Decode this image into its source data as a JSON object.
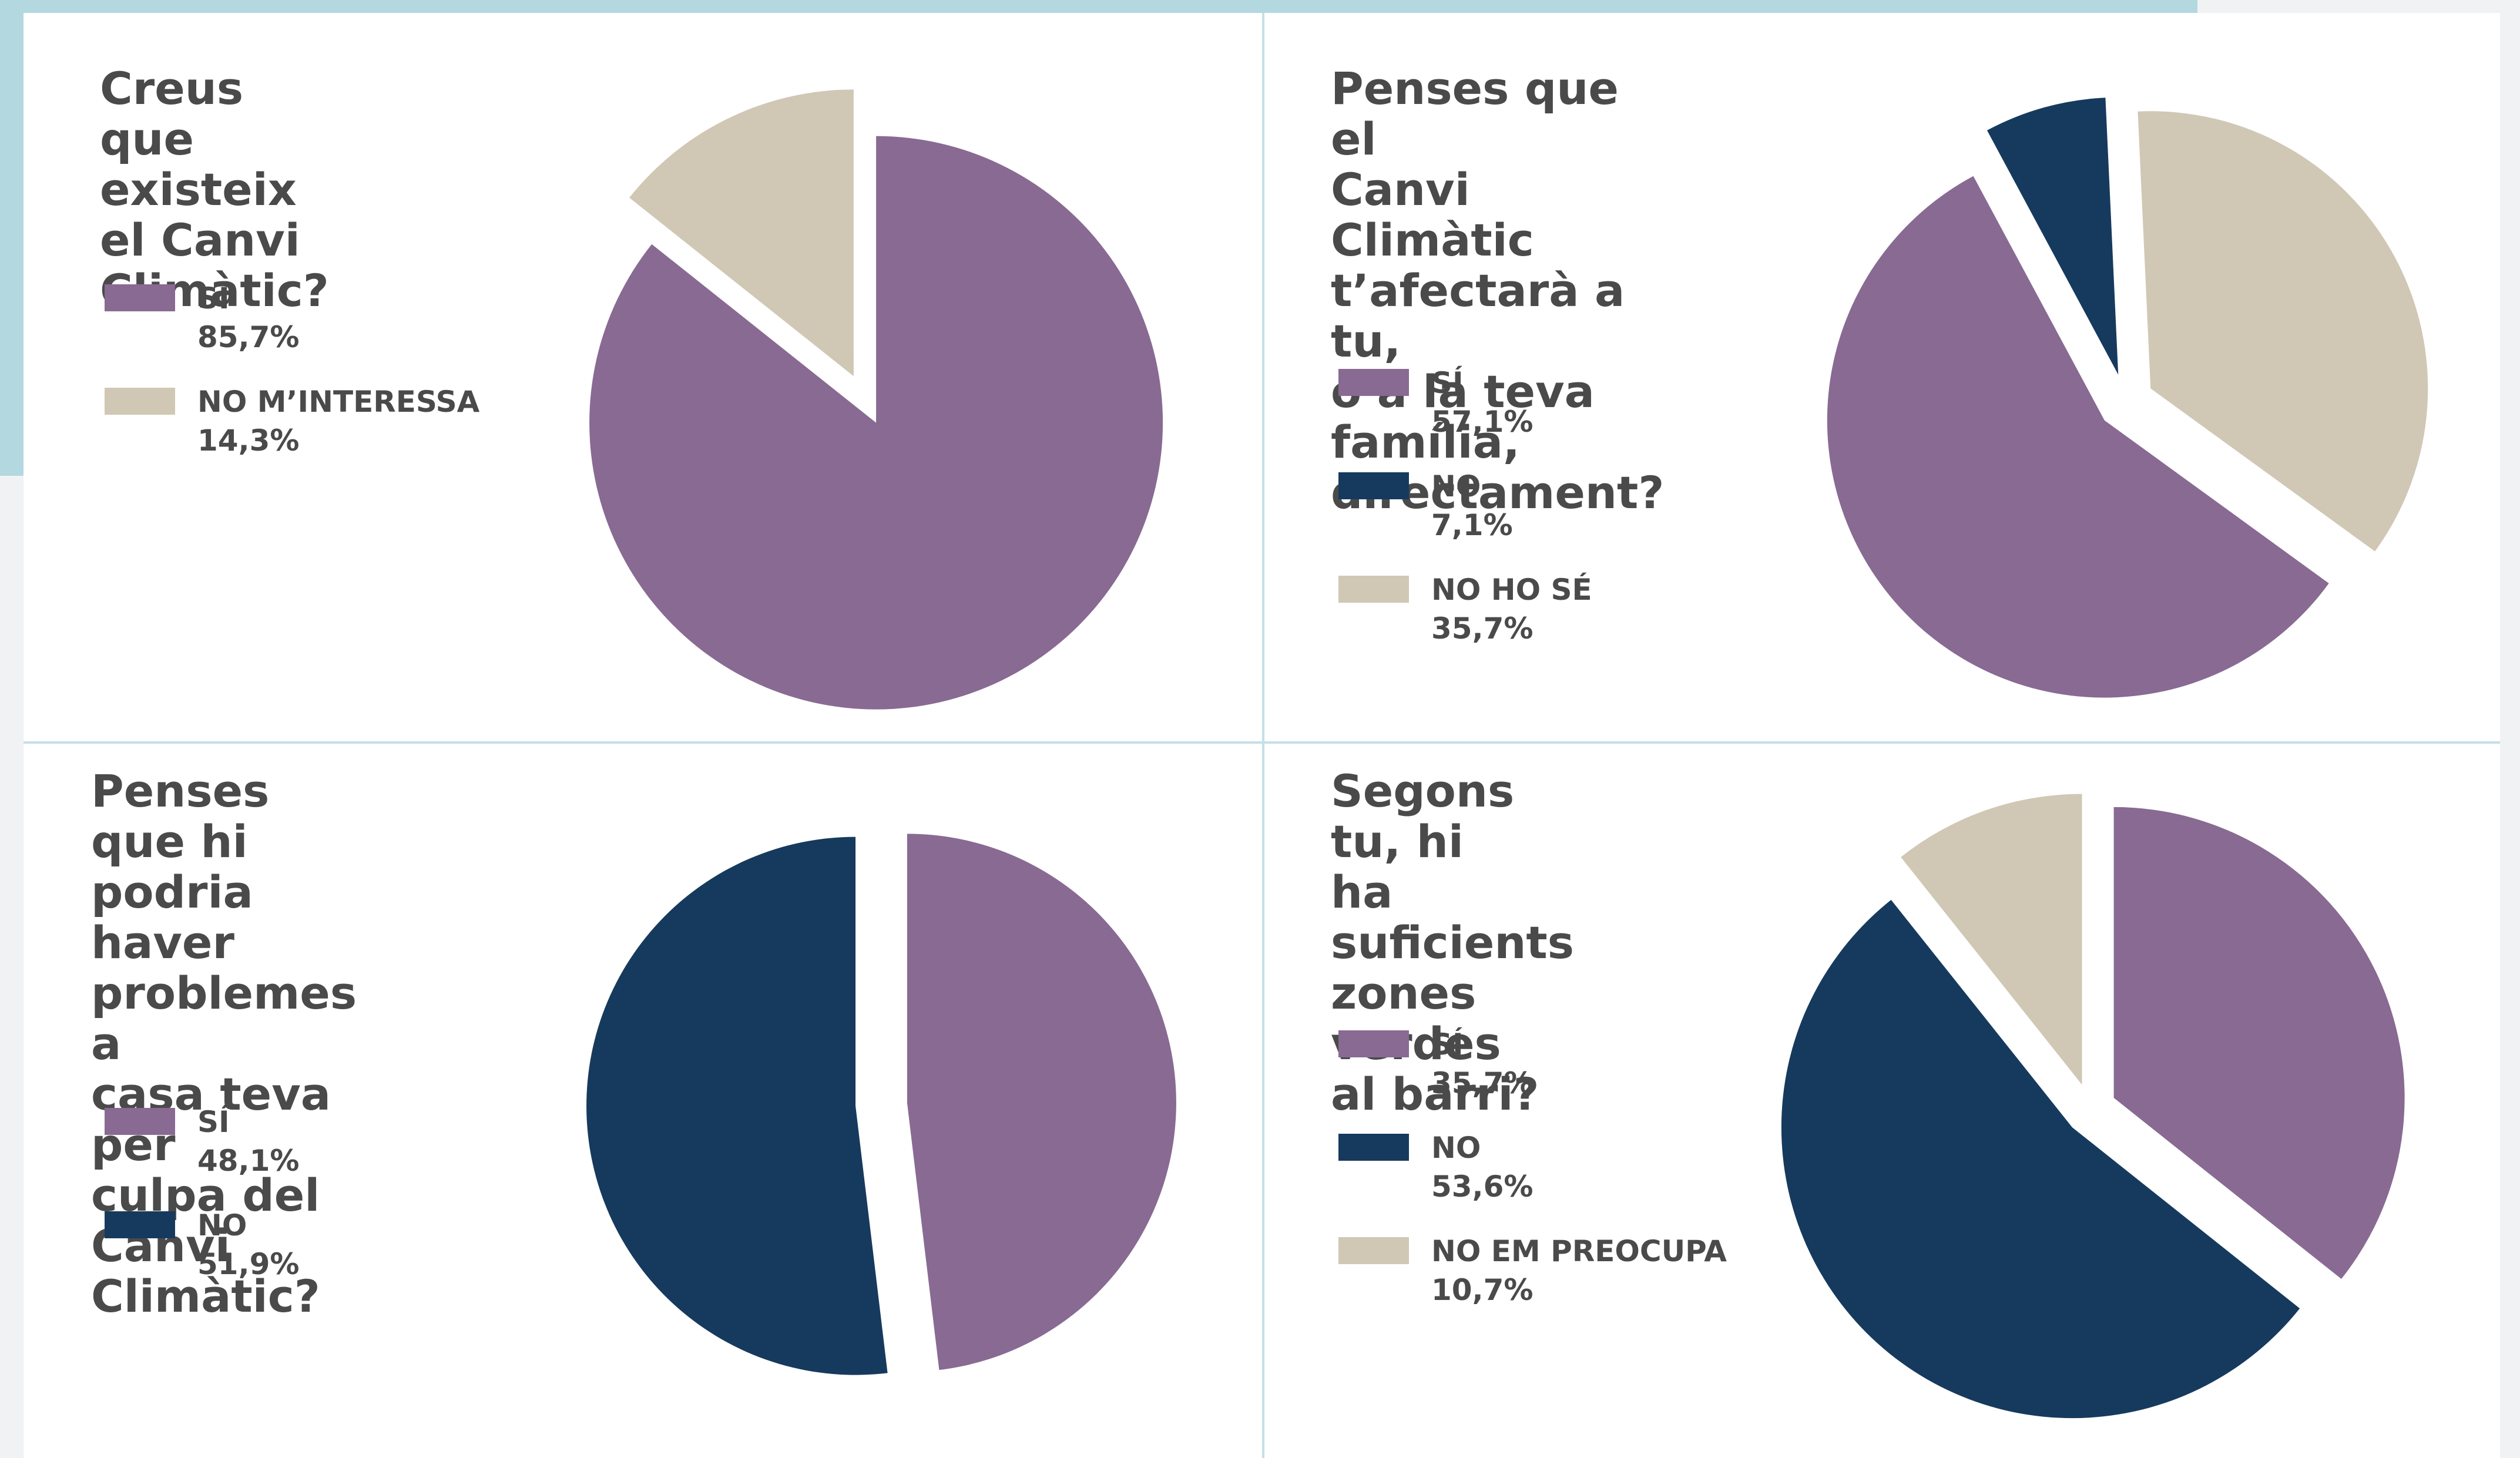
{
  "colors": {
    "purple": "#886a93",
    "navy": "#163a5d",
    "beige": "#d0c7b5"
  },
  "chart_data": [
    {
      "type": "pie",
      "title": "Creus que\nexisteix el Canvi\nClimàtic?",
      "slices": [
        {
          "label": "SÍ",
          "value": 85.7,
          "display": "85,7%",
          "color": "#886a93"
        },
        {
          "label": "NO M’INTERESSA",
          "value": 14.3,
          "display": "14,3%",
          "color": "#d0c7b5"
        }
      ]
    },
    {
      "type": "pie",
      "title": "Penses que el\nCanvi Climàtic\nt’afectarà a tu,\no a la teva família,\ndirectament?",
      "slices": [
        {
          "label": "SÍ",
          "value": 57.1,
          "display": "57,1%",
          "color": "#886a93"
        },
        {
          "label": "NO",
          "value": 7.1,
          "display": "7,1%",
          "color": "#163a5d"
        },
        {
          "label": "NO HO SÉ",
          "value": 35.7,
          "display": "35,7%",
          "color": "#d0c7b5"
        }
      ]
    },
    {
      "type": "pie",
      "title": "Penses que hi\npodria haver\nproblemes a\ncasa teva per\nculpa del Canvi\nClimàtic?",
      "slices": [
        {
          "label": "SÍ",
          "value": 48.1,
          "display": "48,1%",
          "color": "#886a93"
        },
        {
          "label": "NO",
          "value": 51.9,
          "display": "51,9%",
          "color": "#163a5d"
        }
      ]
    },
    {
      "type": "pie",
      "title": "Segons tu, hi\nha suficients\nzones verdes\nal barri?",
      "slices": [
        {
          "label": "SÍ",
          "value": 35.7,
          "display": "35,7%",
          "color": "#886a93"
        },
        {
          "label": "NO",
          "value": 53.6,
          "display": "53,6%",
          "color": "#163a5d"
        },
        {
          "label": "NO EM PREOCUPA",
          "value": 10.7,
          "display": "10,7%",
          "color": "#d0c7b5"
        }
      ]
    }
  ]
}
